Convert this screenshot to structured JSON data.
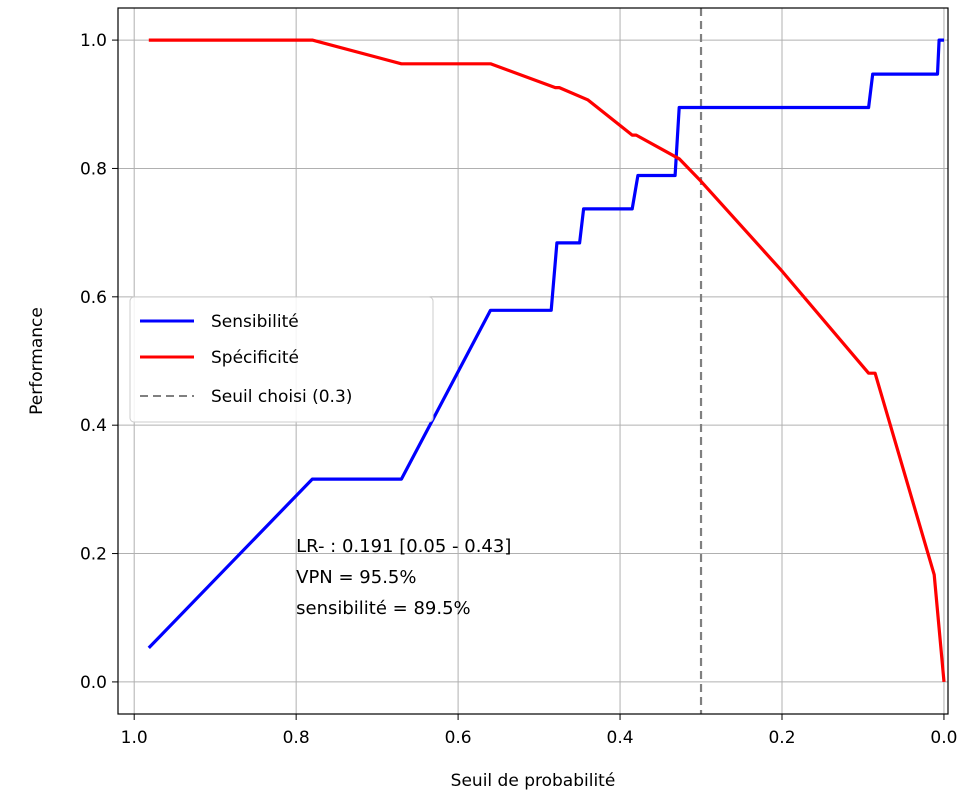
{
  "chart_data": {
    "type": "line",
    "xlabel": "Seuil de probabilité",
    "ylabel": "Performance",
    "xlim": [
      1.02,
      -0.005
    ],
    "ylim": [
      -0.05,
      1.05
    ],
    "x_inverted": true,
    "grid": true,
    "xticks": [
      1.0,
      0.8,
      0.6,
      0.4,
      0.2,
      0.0
    ],
    "xtick_labels": [
      "1.0",
      "0.8",
      "0.6",
      "0.4",
      "0.2",
      "0.0"
    ],
    "yticks": [
      0.0,
      0.2,
      0.4,
      0.6,
      0.8,
      1.0
    ],
    "ytick_labels": [
      "0.0",
      "0.2",
      "0.4",
      "0.6",
      "0.8",
      "1.0"
    ],
    "legend_position": "center-left",
    "series": [
      {
        "name": "Sensibilité",
        "color": "#0000ff",
        "style": "solid",
        "points": [
          [
            0.982,
            0.053
          ],
          [
            0.78,
            0.316
          ],
          [
            0.67,
            0.316
          ],
          [
            0.56,
            0.579
          ],
          [
            0.485,
            0.579
          ],
          [
            0.478,
            0.684
          ],
          [
            0.45,
            0.684
          ],
          [
            0.445,
            0.737
          ],
          [
            0.385,
            0.737
          ],
          [
            0.378,
            0.789
          ],
          [
            0.332,
            0.789
          ],
          [
            0.327,
            0.895
          ],
          [
            0.093,
            0.895
          ],
          [
            0.088,
            0.947
          ],
          [
            0.008,
            0.947
          ],
          [
            0.006,
            1.0
          ],
          [
            0.0,
            1.0
          ]
        ]
      },
      {
        "name": "Spécificité",
        "color": "#ff0000",
        "style": "solid",
        "points": [
          [
            0.982,
            1.0
          ],
          [
            0.78,
            1.0
          ],
          [
            0.67,
            0.963
          ],
          [
            0.56,
            0.963
          ],
          [
            0.48,
            0.926
          ],
          [
            0.475,
            0.926
          ],
          [
            0.44,
            0.907
          ],
          [
            0.385,
            0.852
          ],
          [
            0.38,
            0.852
          ],
          [
            0.327,
            0.815
          ],
          [
            0.3,
            0.78
          ],
          [
            0.2,
            0.64
          ],
          [
            0.093,
            0.481
          ],
          [
            0.085,
            0.481
          ],
          [
            0.012,
            0.167
          ],
          [
            0.0,
            0.0
          ]
        ]
      },
      {
        "name": "Seuil choisi (0.3)",
        "color": "#808080",
        "style": "dashed",
        "vline_x": 0.3
      }
    ],
    "annotations": [
      "LR- : 0.191 [0.05 - 0.43]",
      "VPN = 95.5%",
      "sensibilité = 89.5%"
    ]
  }
}
